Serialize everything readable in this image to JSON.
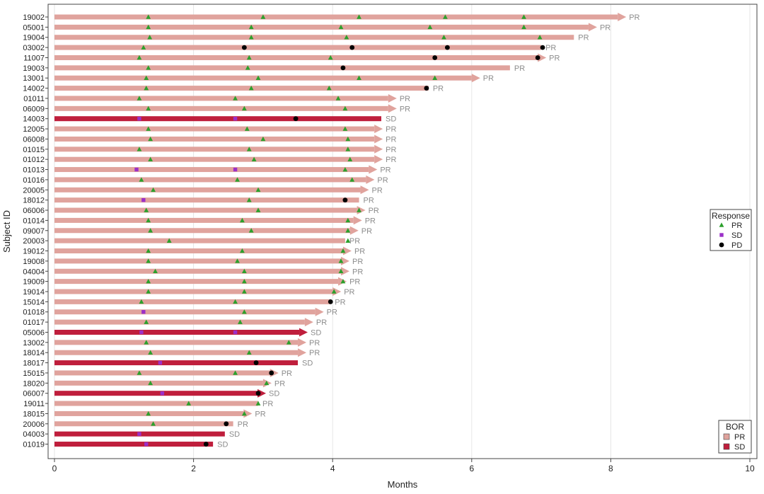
{
  "chart_data": {
    "type": "swimmer",
    "xlabel": "Months",
    "ylabel": "Subject ID",
    "xlim": [
      0,
      10
    ],
    "xticks": [
      0,
      2,
      4,
      6,
      8,
      10
    ],
    "grid": "vertical",
    "colors": {
      "PR_bar": "#e0a39d",
      "SD_bar": "#bf1e3c",
      "PR_marker": "#2ca02c",
      "SD_marker": "#9b30c8",
      "PD_marker": "#000000",
      "bor_label": "#8c8c8c"
    },
    "legend_response": {
      "title": "Response",
      "entries": [
        "PR",
        "SD",
        "PD"
      ],
      "placement": "right"
    },
    "legend_bor": {
      "title": "BOR",
      "entries": [
        "PR",
        "SD"
      ],
      "placement": "bottom-right"
    },
    "subjects": [
      {
        "id": "19002",
        "duration": 8.1,
        "bor": "PR",
        "ongoing": true,
        "events": [
          {
            "t": 1.35,
            "r": "PR"
          },
          {
            "t": 3.0,
            "r": "PR"
          },
          {
            "t": 4.38,
            "r": "PR"
          },
          {
            "t": 5.62,
            "r": "PR"
          },
          {
            "t": 6.75,
            "r": "PR"
          }
        ]
      },
      {
        "id": "05001",
        "duration": 7.68,
        "bor": "PR",
        "ongoing": true,
        "events": [
          {
            "t": 1.35,
            "r": "PR"
          },
          {
            "t": 2.83,
            "r": "PR"
          },
          {
            "t": 4.12,
            "r": "PR"
          },
          {
            "t": 5.4,
            "r": "PR"
          },
          {
            "t": 6.75,
            "r": "PR"
          }
        ]
      },
      {
        "id": "19004",
        "duration": 7.47,
        "bor": "PR",
        "ongoing": false,
        "events": [
          {
            "t": 1.37,
            "r": "PR"
          },
          {
            "t": 2.83,
            "r": "PR"
          },
          {
            "t": 4.2,
            "r": "PR"
          },
          {
            "t": 5.6,
            "r": "PR"
          },
          {
            "t": 6.98,
            "r": "PR"
          }
        ]
      },
      {
        "id": "03002",
        "duration": 7.0,
        "bor": "PR",
        "ongoing": false,
        "events": [
          {
            "t": 1.28,
            "r": "PR"
          },
          {
            "t": 2.73,
            "r": "PD"
          },
          {
            "t": 4.28,
            "r": "PD"
          },
          {
            "t": 5.65,
            "r": "PD"
          },
          {
            "t": 7.02,
            "r": "PD"
          }
        ]
      },
      {
        "id": "11007",
        "duration": 6.95,
        "bor": "PR",
        "ongoing": true,
        "events": [
          {
            "t": 1.22,
            "r": "PR"
          },
          {
            "t": 2.8,
            "r": "PR"
          },
          {
            "t": 3.97,
            "r": "PR"
          },
          {
            "t": 5.47,
            "r": "PD"
          },
          {
            "t": 6.95,
            "r": "PD"
          }
        ]
      },
      {
        "id": "19003",
        "duration": 6.55,
        "bor": "PR",
        "ongoing": false,
        "events": [
          {
            "t": 1.35,
            "r": "PR"
          },
          {
            "t": 2.78,
            "r": "PR"
          },
          {
            "t": 4.15,
            "r": "PD"
          }
        ]
      },
      {
        "id": "13001",
        "duration": 6.0,
        "bor": "PR",
        "ongoing": true,
        "events": [
          {
            "t": 1.32,
            "r": "PR"
          },
          {
            "t": 2.93,
            "r": "PR"
          },
          {
            "t": 4.38,
            "r": "PR"
          },
          {
            "t": 5.47,
            "r": "PR"
          }
        ]
      },
      {
        "id": "14002",
        "duration": 5.38,
        "bor": "PR",
        "ongoing": false,
        "events": [
          {
            "t": 1.32,
            "r": "PR"
          },
          {
            "t": 2.83,
            "r": "PR"
          },
          {
            "t": 3.95,
            "r": "PR"
          },
          {
            "t": 5.35,
            "r": "PD"
          }
        ]
      },
      {
        "id": "01011",
        "duration": 4.8,
        "bor": "PR",
        "ongoing": true,
        "events": [
          {
            "t": 1.22,
            "r": "PR"
          },
          {
            "t": 2.6,
            "r": "PR"
          },
          {
            "t": 4.08,
            "r": "PR"
          }
        ]
      },
      {
        "id": "06009",
        "duration": 4.8,
        "bor": "PR",
        "ongoing": true,
        "events": [
          {
            "t": 1.35,
            "r": "PR"
          },
          {
            "t": 2.73,
            "r": "PR"
          },
          {
            "t": 4.18,
            "r": "PR"
          }
        ]
      },
      {
        "id": "14003",
        "duration": 4.7,
        "bor": "SD",
        "ongoing": false,
        "events": [
          {
            "t": 1.22,
            "r": "SD"
          },
          {
            "t": 2.6,
            "r": "SD"
          },
          {
            "t": 3.47,
            "r": "PD"
          }
        ]
      },
      {
        "id": "12005",
        "duration": 4.6,
        "bor": "PR",
        "ongoing": true,
        "events": [
          {
            "t": 1.35,
            "r": "PR"
          },
          {
            "t": 2.77,
            "r": "PR"
          },
          {
            "t": 4.18,
            "r": "PR"
          }
        ]
      },
      {
        "id": "06008",
        "duration": 4.6,
        "bor": "PR",
        "ongoing": true,
        "events": [
          {
            "t": 1.38,
            "r": "PR"
          },
          {
            "t": 3.0,
            "r": "PR"
          },
          {
            "t": 4.22,
            "r": "PR"
          }
        ]
      },
      {
        "id": "01015",
        "duration": 4.6,
        "bor": "PR",
        "ongoing": true,
        "events": [
          {
            "t": 1.22,
            "r": "PR"
          },
          {
            "t": 2.8,
            "r": "PR"
          },
          {
            "t": 4.22,
            "r": "PR"
          }
        ]
      },
      {
        "id": "01012",
        "duration": 4.6,
        "bor": "PR",
        "ongoing": true,
        "events": [
          {
            "t": 1.38,
            "r": "PR"
          },
          {
            "t": 2.87,
            "r": "PR"
          },
          {
            "t": 4.25,
            "r": "PR"
          }
        ]
      },
      {
        "id": "01013",
        "duration": 4.52,
        "bor": "PR",
        "ongoing": true,
        "events": [
          {
            "t": 1.18,
            "r": "SD"
          },
          {
            "t": 2.6,
            "r": "SD"
          },
          {
            "t": 4.18,
            "r": "PR"
          }
        ]
      },
      {
        "id": "01016",
        "duration": 4.48,
        "bor": "PR",
        "ongoing": true,
        "events": [
          {
            "t": 1.25,
            "r": "PR"
          },
          {
            "t": 2.63,
            "r": "PR"
          },
          {
            "t": 4.28,
            "r": "PR"
          }
        ]
      },
      {
        "id": "20005",
        "duration": 4.4,
        "bor": "PR",
        "ongoing": true,
        "events": [
          {
            "t": 1.42,
            "r": "PR"
          },
          {
            "t": 2.93,
            "r": "PR"
          }
        ]
      },
      {
        "id": "18012",
        "duration": 4.38,
        "bor": "PR",
        "ongoing": false,
        "events": [
          {
            "t": 1.28,
            "r": "SD"
          },
          {
            "t": 2.8,
            "r": "PR"
          },
          {
            "t": 4.18,
            "r": "PD"
          }
        ]
      },
      {
        "id": "06006",
        "duration": 4.35,
        "bor": "PR",
        "ongoing": true,
        "events": [
          {
            "t": 1.32,
            "r": "PR"
          },
          {
            "t": 2.93,
            "r": "PR"
          },
          {
            "t": 4.38,
            "r": "PR"
          }
        ]
      },
      {
        "id": "01014",
        "duration": 4.3,
        "bor": "PR",
        "ongoing": true,
        "events": [
          {
            "t": 1.35,
            "r": "PR"
          },
          {
            "t": 2.7,
            "r": "PR"
          },
          {
            "t": 4.22,
            "r": "PR"
          }
        ]
      },
      {
        "id": "09007",
        "duration": 4.25,
        "bor": "PR",
        "ongoing": true,
        "events": [
          {
            "t": 1.38,
            "r": "PR"
          },
          {
            "t": 2.83,
            "r": "PR"
          },
          {
            "t": 4.22,
            "r": "PR"
          }
        ]
      },
      {
        "id": "20003",
        "duration": 4.18,
        "bor": "PR",
        "ongoing": false,
        "events": [
          {
            "t": 1.65,
            "r": "PR"
          },
          {
            "t": 4.22,
            "r": "PR"
          }
        ]
      },
      {
        "id": "19012",
        "duration": 4.15,
        "bor": "PR",
        "ongoing": true,
        "events": [
          {
            "t": 1.35,
            "r": "PR"
          },
          {
            "t": 2.7,
            "r": "PR"
          },
          {
            "t": 4.15,
            "r": "PR"
          }
        ]
      },
      {
        "id": "19008",
        "duration": 4.12,
        "bor": "PR",
        "ongoing": true,
        "events": [
          {
            "t": 1.35,
            "r": "PR"
          },
          {
            "t": 2.63,
            "r": "PR"
          },
          {
            "t": 4.12,
            "r": "PR"
          }
        ]
      },
      {
        "id": "04004",
        "duration": 4.12,
        "bor": "PR",
        "ongoing": true,
        "events": [
          {
            "t": 1.45,
            "r": "PR"
          },
          {
            "t": 2.73,
            "r": "PR"
          },
          {
            "t": 4.12,
            "r": "PR"
          }
        ]
      },
      {
        "id": "19009",
        "duration": 4.08,
        "bor": "PR",
        "ongoing": true,
        "events": [
          {
            "t": 1.35,
            "r": "PR"
          },
          {
            "t": 2.73,
            "r": "PR"
          },
          {
            "t": 4.15,
            "r": "PR"
          }
        ]
      },
      {
        "id": "19014",
        "duration": 4.0,
        "bor": "PR",
        "ongoing": true,
        "events": [
          {
            "t": 1.35,
            "r": "PR"
          },
          {
            "t": 2.73,
            "r": "PR"
          },
          {
            "t": 4.02,
            "r": "PR"
          }
        ]
      },
      {
        "id": "15014",
        "duration": 3.97,
        "bor": "PR",
        "ongoing": false,
        "events": [
          {
            "t": 1.25,
            "r": "PR"
          },
          {
            "t": 2.6,
            "r": "PR"
          },
          {
            "t": 3.97,
            "r": "PD"
          }
        ]
      },
      {
        "id": "01018",
        "duration": 3.75,
        "bor": "PR",
        "ongoing": true,
        "events": [
          {
            "t": 1.28,
            "r": "SD"
          },
          {
            "t": 2.73,
            "r": "PR"
          }
        ]
      },
      {
        "id": "01017",
        "duration": 3.6,
        "bor": "PR",
        "ongoing": true,
        "events": [
          {
            "t": 1.32,
            "r": "PR"
          },
          {
            "t": 2.67,
            "r": "PR"
          }
        ]
      },
      {
        "id": "05006",
        "duration": 3.52,
        "bor": "SD",
        "ongoing": true,
        "events": [
          {
            "t": 1.25,
            "r": "SD"
          },
          {
            "t": 2.6,
            "r": "SD"
          }
        ]
      },
      {
        "id": "13002",
        "duration": 3.5,
        "bor": "PR",
        "ongoing": true,
        "events": [
          {
            "t": 1.32,
            "r": "PR"
          },
          {
            "t": 3.37,
            "r": "PR"
          }
        ]
      },
      {
        "id": "18014",
        "duration": 3.5,
        "bor": "PR",
        "ongoing": true,
        "events": [
          {
            "t": 1.38,
            "r": "PR"
          },
          {
            "t": 2.8,
            "r": "PR"
          }
        ]
      },
      {
        "id": "18017",
        "duration": 3.5,
        "bor": "SD",
        "ongoing": false,
        "events": [
          {
            "t": 1.52,
            "r": "SD"
          },
          {
            "t": 2.9,
            "r": "PD"
          }
        ]
      },
      {
        "id": "15015",
        "duration": 3.1,
        "bor": "PR",
        "ongoing": true,
        "events": [
          {
            "t": 1.22,
            "r": "PR"
          },
          {
            "t": 2.6,
            "r": "PR"
          },
          {
            "t": 3.12,
            "r": "PD"
          }
        ]
      },
      {
        "id": "18020",
        "duration": 3.0,
        "bor": "PR",
        "ongoing": true,
        "events": [
          {
            "t": 1.38,
            "r": "PR"
          },
          {
            "t": 3.05,
            "r": "PR"
          }
        ]
      },
      {
        "id": "06007",
        "duration": 2.92,
        "bor": "SD",
        "ongoing": true,
        "events": [
          {
            "t": 1.55,
            "r": "SD"
          },
          {
            "t": 2.93,
            "r": "PD"
          }
        ]
      },
      {
        "id": "19011",
        "duration": 2.93,
        "bor": "PR",
        "ongoing": false,
        "events": [
          {
            "t": 1.93,
            "r": "PR"
          },
          {
            "t": 2.93,
            "r": "PR"
          }
        ]
      },
      {
        "id": "18015",
        "duration": 2.72,
        "bor": "PR",
        "ongoing": true,
        "events": [
          {
            "t": 1.35,
            "r": "PR"
          },
          {
            "t": 2.73,
            "r": "PR"
          }
        ]
      },
      {
        "id": "20006",
        "duration": 2.57,
        "bor": "PR",
        "ongoing": false,
        "events": [
          {
            "t": 1.42,
            "r": "PR"
          },
          {
            "t": 2.47,
            "r": "PD"
          }
        ]
      },
      {
        "id": "04003",
        "duration": 2.45,
        "bor": "SD",
        "ongoing": false,
        "events": [
          {
            "t": 1.22,
            "r": "SD"
          }
        ]
      },
      {
        "id": "01019",
        "duration": 2.28,
        "bor": "SD",
        "ongoing": false,
        "events": [
          {
            "t": 1.32,
            "r": "SD"
          },
          {
            "t": 2.18,
            "r": "PD"
          }
        ]
      }
    ]
  }
}
